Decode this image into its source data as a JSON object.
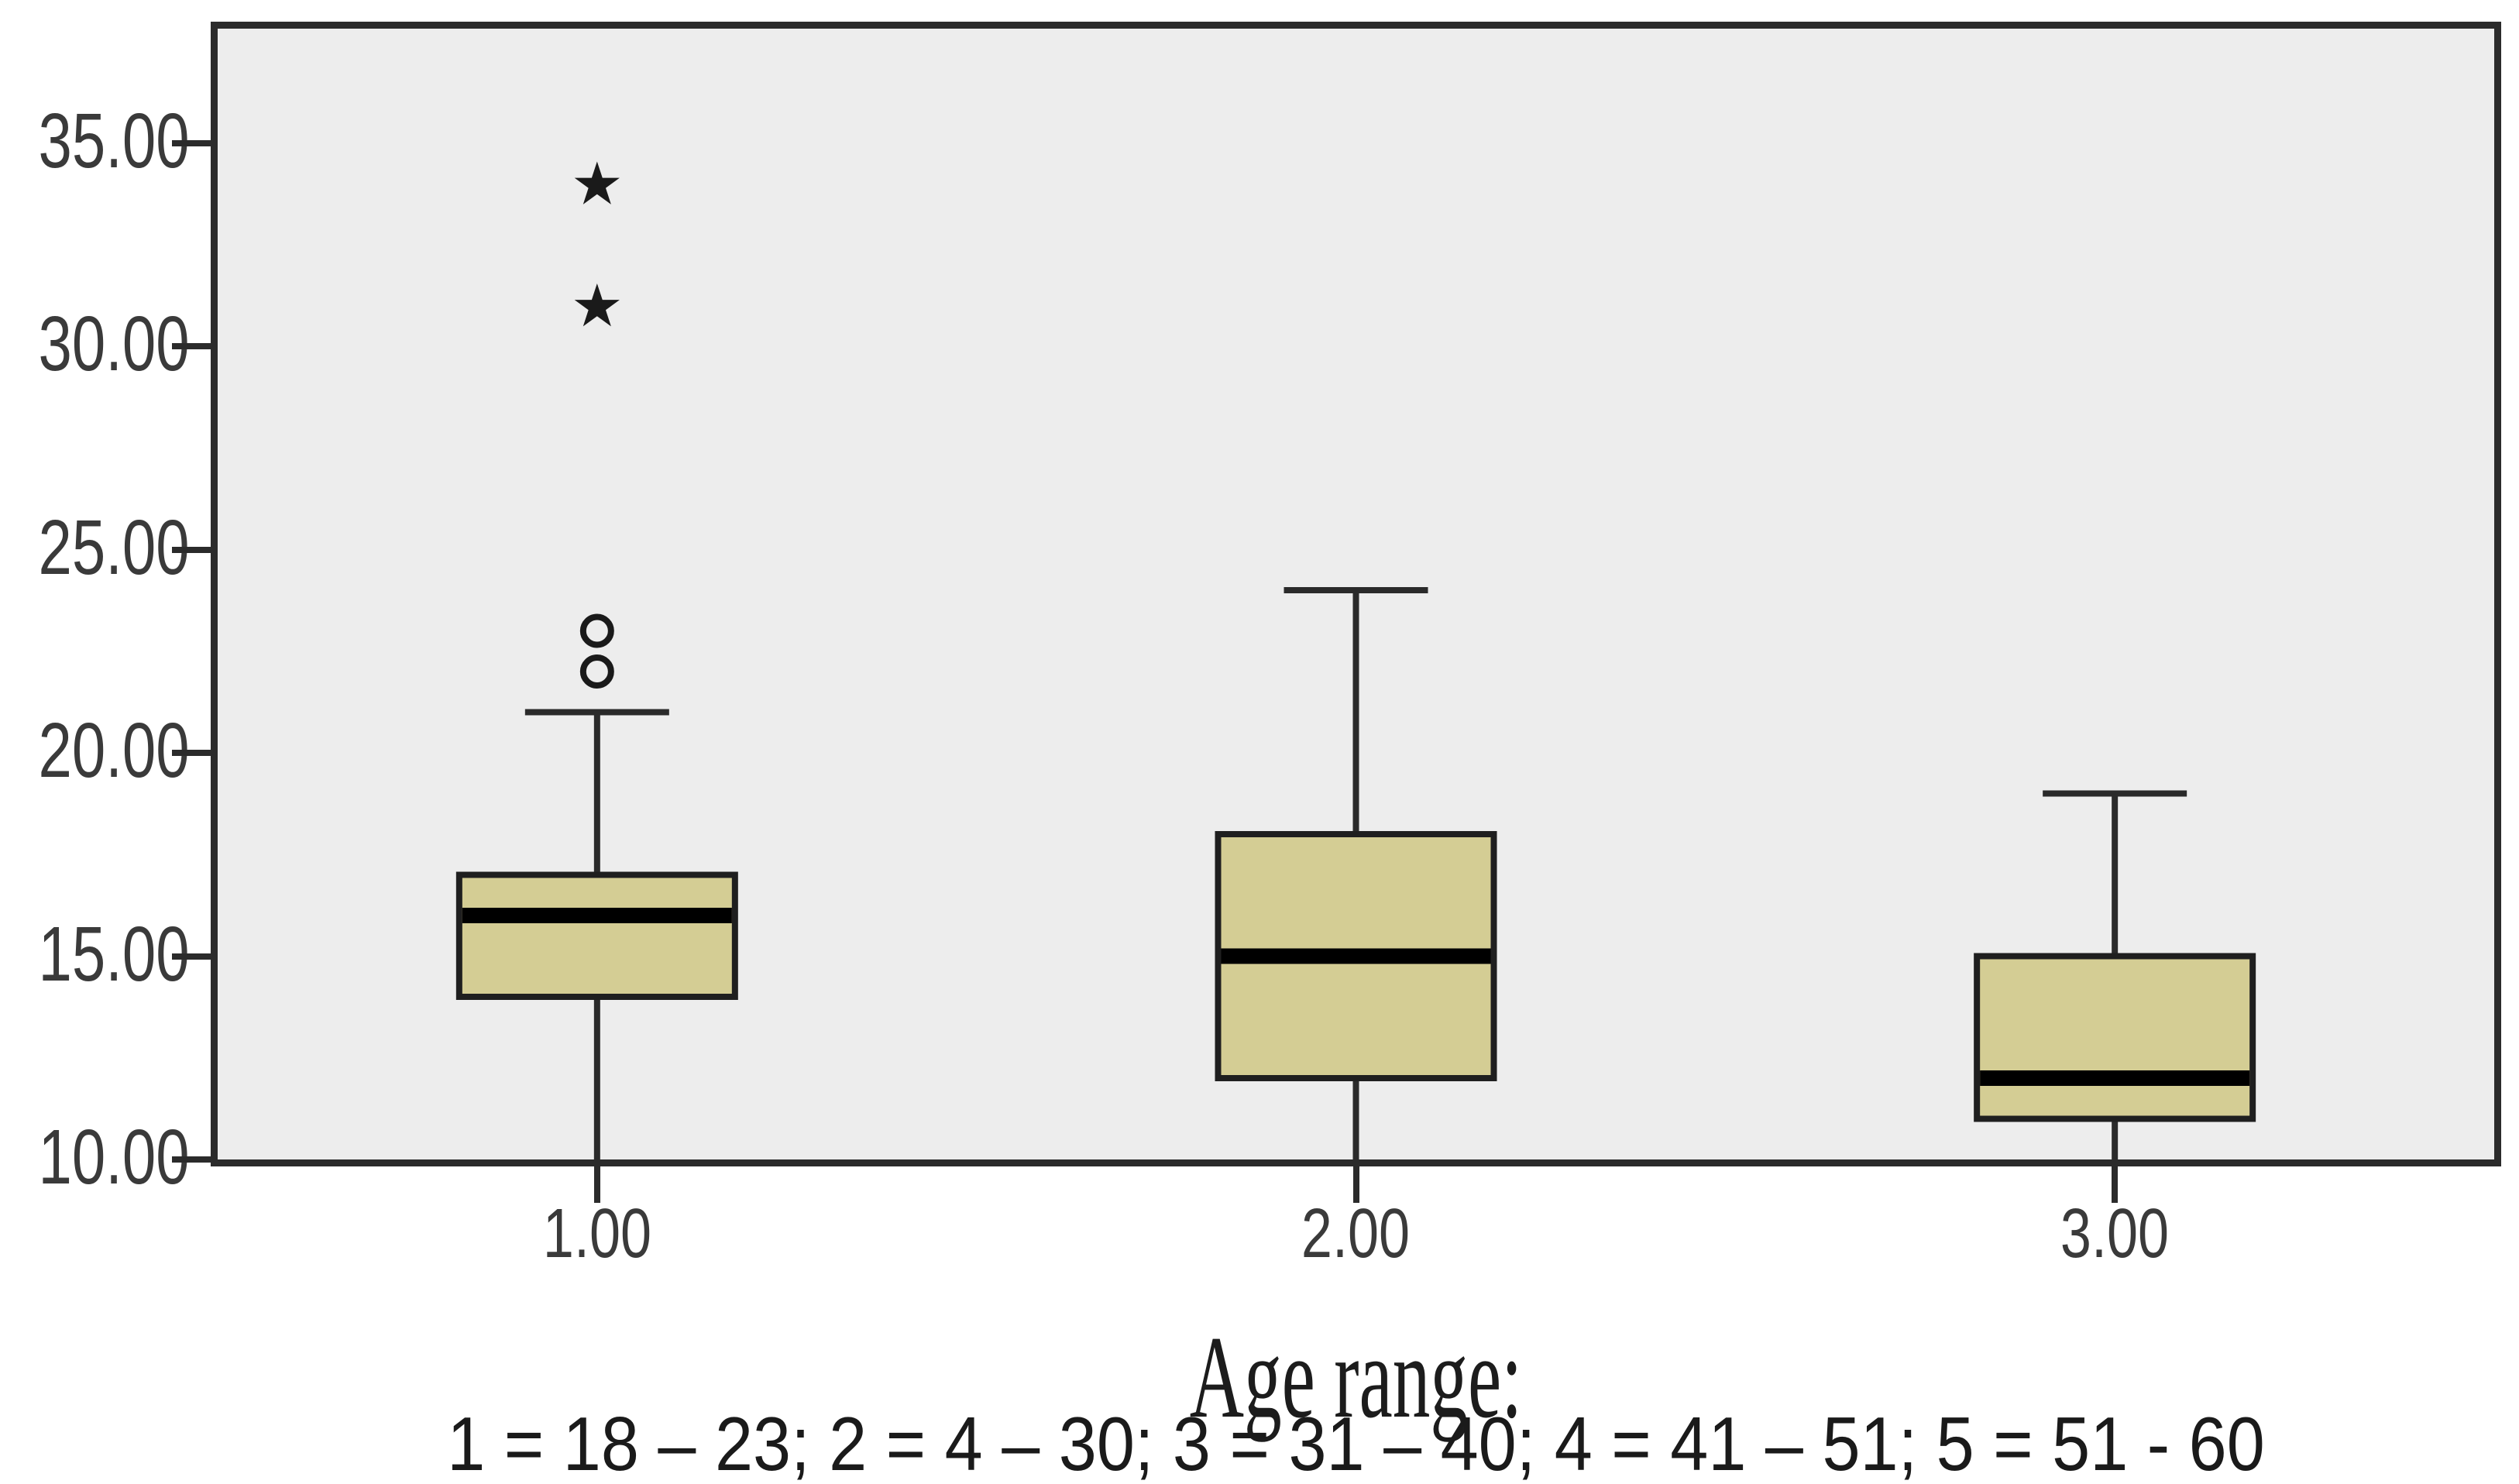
{
  "style": {
    "background": "#ffffff",
    "plot_background": "#ededed",
    "plot_border": "#2b2b2b",
    "box_fill": "#d4cd94",
    "box_border": "#1f1f1f",
    "median_color": "#000000",
    "whisker_color": "#2a2a2a",
    "outlier_color": "#1a1a1a",
    "tick_label_color": "#3a3a3a",
    "caption_color": "#1c1c1c"
  },
  "icons": {
    "extreme_outlier_glyph": "★",
    "outlier_glyph": "○"
  },
  "chart_data": {
    "type": "boxplot",
    "title": "",
    "xlabel_line1": "Age range:",
    "xlabel_line2": "1 = 18 – 23; 2 = 4 – 30; 3 = 31 – 40; 4 = 41 – 51; 5 = 51 - 60",
    "ylim": [
      10,
      35
    ],
    "grid": false,
    "legend_position": "none",
    "y_ticks": [
      {
        "value": 10,
        "label": "10.00"
      },
      {
        "value": 15,
        "label": "15.00"
      },
      {
        "value": 20,
        "label": "20.00"
      },
      {
        "value": 25,
        "label": "25.00"
      },
      {
        "value": 30,
        "label": "30.00"
      },
      {
        "value": 35,
        "label": "35.00"
      }
    ],
    "categories": [
      "1.00",
      "2.00",
      "3.00"
    ],
    "series": [
      {
        "category": "1.00",
        "whisker_low": 10,
        "q1": 14,
        "median": 16,
        "q3": 17,
        "whisker_high": 21,
        "outliers_circle": [
          22,
          23
        ],
        "outliers_star": [
          31,
          34
        ]
      },
      {
        "category": "2.00",
        "whisker_low": 10,
        "q1": 12,
        "median": 15,
        "q3": 18,
        "whisker_high": 24,
        "outliers_circle": [],
        "outliers_star": []
      },
      {
        "category": "3.00",
        "whisker_low": 10,
        "q1": 11,
        "median": 12,
        "q3": 15,
        "whisker_high": 19,
        "outliers_circle": [],
        "outliers_star": []
      }
    ]
  }
}
